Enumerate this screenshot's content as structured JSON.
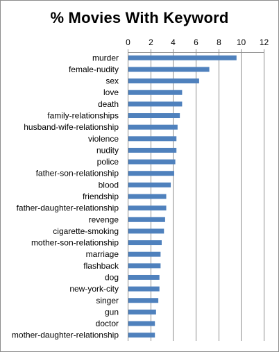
{
  "chart_data": {
    "type": "bar",
    "orientation": "horizontal",
    "title": "% Movies With Keyword",
    "xlabel": "",
    "ylabel": "",
    "xlim": [
      0,
      12
    ],
    "x_ticks": [
      0,
      2,
      4,
      6,
      8,
      10,
      12
    ],
    "x_axis_position": "top",
    "grid": "vertical",
    "legend": "none",
    "bar_color": "#4f81bd",
    "categories": [
      "murder",
      "female-nudity",
      "sex",
      "love",
      "death",
      "family-relationships",
      "husband-wife-relationship",
      "violence",
      "nudity",
      "police",
      "father-son-relationship",
      "blood",
      "friendship",
      "father-daughter-relationship",
      "revenge",
      "cigarette-smoking",
      "mother-son-relationship",
      "marriage",
      "flashback",
      "dog",
      "new-york-city",
      "singer",
      "gun",
      "doctor",
      "mother-daughter-relationship"
    ],
    "values": [
      9.6,
      7.2,
      6.3,
      4.8,
      4.8,
      4.6,
      4.4,
      4.3,
      4.3,
      4.2,
      4.1,
      3.8,
      3.4,
      3.4,
      3.3,
      3.2,
      3.0,
      2.9,
      2.9,
      2.8,
      2.8,
      2.7,
      2.5,
      2.4,
      2.4
    ]
  }
}
